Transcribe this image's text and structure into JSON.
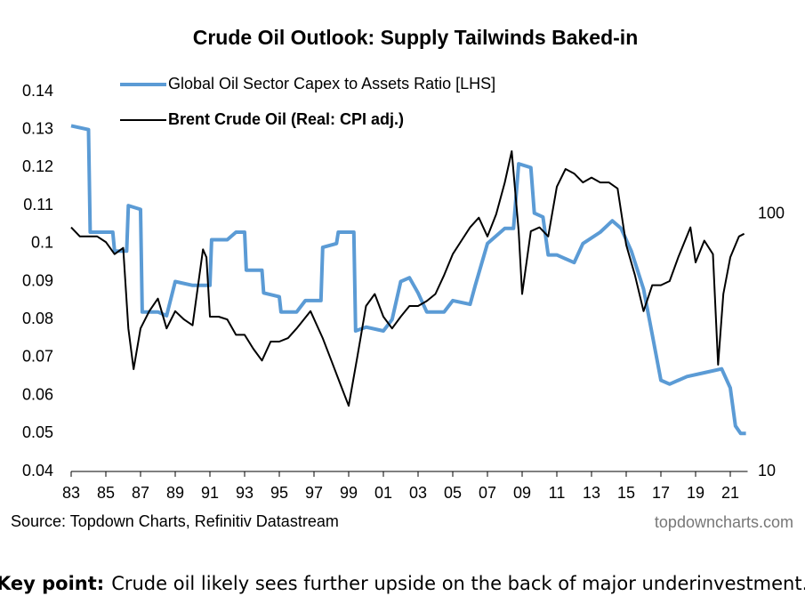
{
  "chart_data": {
    "type": "line",
    "title": "Crude Oil Outlook: Supply Tailwinds Baked-in",
    "source": "Source: Topdown Charts, Refinitiv Datastream",
    "watermark": "topdowncharts.com",
    "xlim": [
      1983,
      2022
    ],
    "xticks": [
      {
        "value": 1983,
        "label": "83"
      },
      {
        "value": 1985,
        "label": "85"
      },
      {
        "value": 1987,
        "label": "87"
      },
      {
        "value": 1989,
        "label": "89"
      },
      {
        "value": 1991,
        "label": "91"
      },
      {
        "value": 1993,
        "label": "93"
      },
      {
        "value": 1995,
        "label": "95"
      },
      {
        "value": 1997,
        "label": "97"
      },
      {
        "value": 1999,
        "label": "99"
      },
      {
        "value": 2001,
        "label": "01"
      },
      {
        "value": 2003,
        "label": "03"
      },
      {
        "value": 2005,
        "label": "05"
      },
      {
        "value": 2007,
        "label": "07"
      },
      {
        "value": 2009,
        "label": "09"
      },
      {
        "value": 2011,
        "label": "11"
      },
      {
        "value": 2013,
        "label": "13"
      },
      {
        "value": 2015,
        "label": "15"
      },
      {
        "value": 2017,
        "label": "17"
      },
      {
        "value": 2019,
        "label": "19"
      },
      {
        "value": 2021,
        "label": "21"
      }
    ],
    "ylim": [
      0.04,
      0.14
    ],
    "yticks": [
      0.04,
      0.05,
      0.06,
      0.07,
      0.08,
      0.09,
      0.1,
      0.11,
      0.12,
      0.13,
      0.14
    ],
    "y2lim": [
      10,
      300
    ],
    "y2scale": "log",
    "y2ticks": [
      10,
      100
    ],
    "grid": false,
    "series": [
      {
        "name": "Global Oil Sector Capex to Assets Ratio [LHS]",
        "color": "#5b9bd5",
        "axis": "y",
        "x": [
          1983.0,
          1984.0,
          1984.1,
          1985.4,
          1985.5,
          1986.2,
          1986.3,
          1987.0,
          1987.1,
          1988.0,
          1988.5,
          1989.0,
          1990.0,
          1991.0,
          1991.1,
          1992.0,
          1992.5,
          1993.0,
          1993.1,
          1994.0,
          1994.1,
          1995.0,
          1995.1,
          1996.0,
          1996.5,
          1997.4,
          1997.5,
          1998.3,
          1998.4,
          1999.3,
          1999.4,
          2000.0,
          2001.0,
          2001.5,
          2002.0,
          2002.5,
          2003.0,
          2003.5,
          2004.5,
          2005.0,
          2006.0,
          2006.3,
          2007.0,
          2008.0,
          2008.5,
          2008.8,
          2009.5,
          2009.7,
          2010.2,
          2010.5,
          2011.0,
          2012.0,
          2012.5,
          2013.5,
          2014.2,
          2014.7,
          2015.3,
          2016.0,
          2016.5,
          2017.0,
          2017.5,
          2018.5,
          2019.5,
          2020.5,
          2021.0,
          2021.3,
          2021.6,
          2021.9
        ],
        "values": [
          0.131,
          0.13,
          0.103,
          0.103,
          0.098,
          0.098,
          0.11,
          0.109,
          0.082,
          0.082,
          0.081,
          0.09,
          0.089,
          0.089,
          0.101,
          0.101,
          0.103,
          0.103,
          0.093,
          0.093,
          0.087,
          0.086,
          0.082,
          0.082,
          0.085,
          0.085,
          0.099,
          0.1,
          0.103,
          0.103,
          0.077,
          0.078,
          0.077,
          0.08,
          0.09,
          0.091,
          0.087,
          0.082,
          0.082,
          0.085,
          0.084,
          0.089,
          0.1,
          0.104,
          0.104,
          0.121,
          0.12,
          0.108,
          0.107,
          0.097,
          0.097,
          0.095,
          0.1,
          0.103,
          0.106,
          0.104,
          0.098,
          0.088,
          0.076,
          0.064,
          0.063,
          0.065,
          0.066,
          0.067,
          0.062,
          0.052,
          0.05,
          0.05
        ]
      },
      {
        "name": "Brent Crude Oil (Real: CPI adj.)",
        "color": "#000000",
        "axis": "y2",
        "x": [
          1983.0,
          1983.5,
          1984.5,
          1985.0,
          1985.5,
          1986.0,
          1986.3,
          1986.6,
          1987.0,
          1987.5,
          1988.0,
          1988.5,
          1989.0,
          1989.5,
          1990.0,
          1990.6,
          1990.8,
          1991.0,
          1991.5,
          1992.0,
          1992.5,
          1993.0,
          1993.5,
          1994.0,
          1994.5,
          1995.0,
          1995.5,
          1996.0,
          1996.8,
          1997.5,
          1998.0,
          1998.5,
          1999.0,
          1999.5,
          2000.0,
          2000.5,
          2001.0,
          2001.5,
          2002.0,
          2002.5,
          2003.0,
          2003.5,
          2004.0,
          2004.5,
          2005.0,
          2005.5,
          2006.0,
          2006.5,
          2007.0,
          2007.5,
          2008.0,
          2008.4,
          2008.8,
          2009.0,
          2009.5,
          2010.0,
          2010.5,
          2011.0,
          2011.5,
          2012.0,
          2012.5,
          2013.0,
          2013.5,
          2014.0,
          2014.5,
          2015.0,
          2015.5,
          2016.0,
          2016.5,
          2017.0,
          2017.5,
          2018.0,
          2018.7,
          2019.0,
          2019.5,
          2020.0,
          2020.3,
          2020.6,
          2021.0,
          2021.5,
          2021.8
        ],
        "values": [
          89,
          82,
          82,
          78,
          70,
          74,
          36,
          25,
          36,
          42,
          47,
          36,
          42,
          39,
          37,
          73,
          68,
          40,
          40,
          39,
          34,
          34,
          30,
          27,
          32,
          32,
          33,
          36,
          42,
          33,
          27,
          22,
          18,
          28,
          44,
          49,
          40,
          36,
          40,
          44,
          44,
          46,
          49,
          58,
          70,
          79,
          89,
          97,
          82,
          100,
          133,
          176,
          86,
          49,
          86,
          89,
          82,
          128,
          150,
          144,
          133,
          139,
          133,
          133,
          126,
          76,
          58,
          42,
          53,
          53,
          55,
          68,
          89,
          65,
          79,
          70,
          26,
          49,
          68,
          82,
          84
        ]
      }
    ]
  },
  "footer": {
    "key_point_label": "Key point:",
    "key_point_text": "Crude oil likely sees further upside on the back of major underinvestment."
  }
}
